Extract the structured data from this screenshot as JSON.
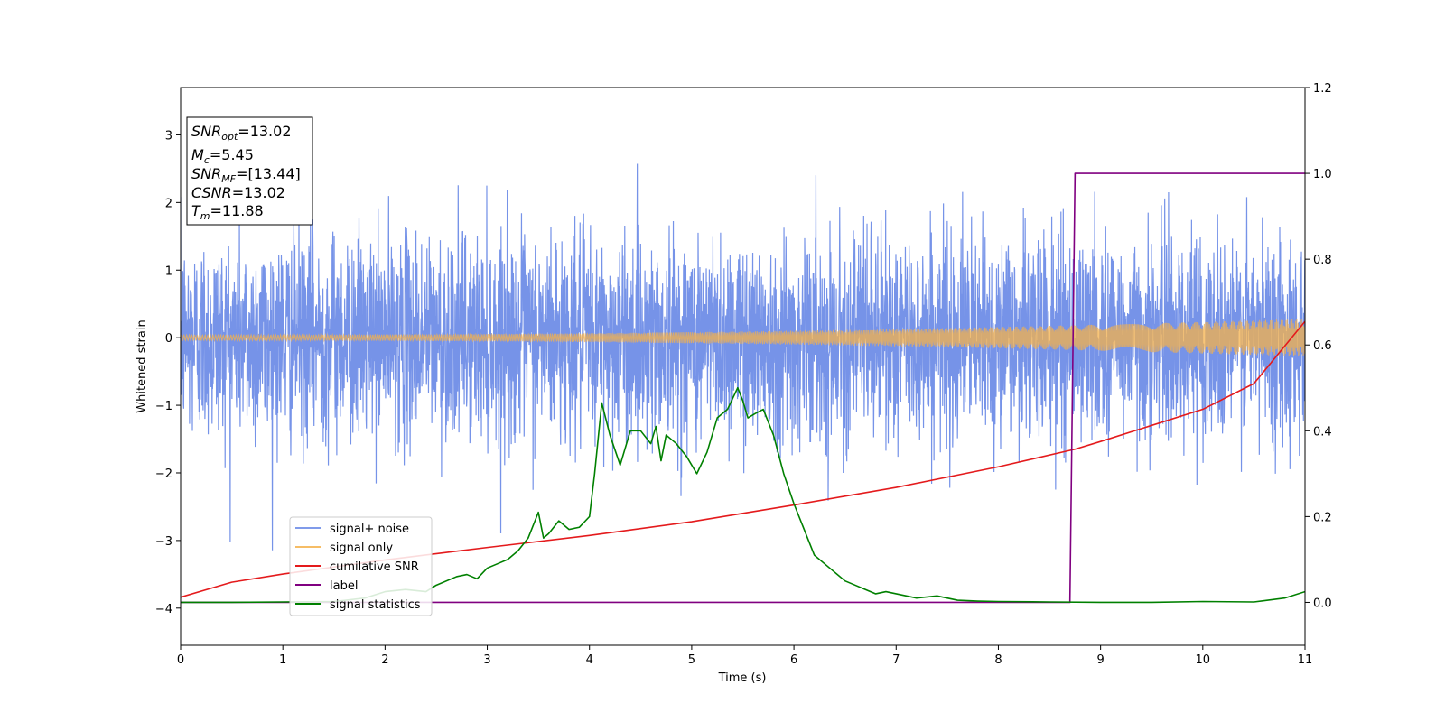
{
  "chart_data": {
    "type": "line",
    "xlabel": "Time (s)",
    "ylabel": "Whitened strain",
    "x_range": [
      0,
      11
    ],
    "y_range_left": [
      -4.55,
      3.7
    ],
    "y_range_right": [
      -0.1,
      1.2
    ],
    "x_ticks": [
      "0",
      "1",
      "2",
      "3",
      "4",
      "5",
      "6",
      "7",
      "8",
      "9",
      "10",
      "11"
    ],
    "x_tick_values": [
      0,
      1,
      2,
      3,
      4,
      5,
      6,
      7,
      8,
      9,
      10,
      11
    ],
    "y_ticks_left": [
      "−4",
      "−3",
      "−2",
      "−1",
      "0",
      "1",
      "2",
      "3"
    ],
    "y_tick_values_left": [
      -4,
      -3,
      -2,
      -1,
      0,
      1,
      2,
      3
    ],
    "y_ticks_right": [
      "0.0",
      "0.2",
      "0.4",
      "0.6",
      "0.8",
      "1.0",
      "1.2"
    ],
    "y_tick_values_right": [
      0.0,
      0.2,
      0.4,
      0.6,
      0.8,
      1.0,
      1.2
    ],
    "grid": false,
    "legend_position": "lower-left",
    "annotation": [
      {
        "base": "SNR",
        "sub": "opt",
        "rest": "=13.02"
      },
      {
        "base": "M",
        "sub": "c",
        "rest": "=5.45"
      },
      {
        "base": "SNR",
        "sub": "MF",
        "rest": "=[13.44]"
      },
      {
        "base": "CSNR",
        "sub": "",
        "rest": "=13.02"
      },
      {
        "base": "T",
        "sub": "m",
        "rest": "=11.88"
      }
    ],
    "series": [
      {
        "name": "signal+ noise",
        "color": "#6a8ae6",
        "axis": "left",
        "kind": "noise",
        "noise_std": 0.75,
        "peak_range": [
          -3.2,
          3.3
        ]
      },
      {
        "name": "signal only",
        "color": "#f5b14b",
        "axis": "left",
        "kind": "chirp",
        "amplitude_start": 0.04,
        "amplitude_end": 0.28
      },
      {
        "name": "cumilative SNR",
        "color": "#e41a1c",
        "axis": "right",
        "x": [
          0,
          0.5,
          1,
          2,
          3,
          4,
          5,
          6,
          7,
          8,
          8.75,
          9,
          10,
          10.5,
          11
        ],
        "y": [
          0.012,
          0.047,
          0.066,
          0.099,
          0.128,
          0.156,
          0.188,
          0.227,
          0.268,
          0.316,
          0.357,
          0.375,
          0.45,
          0.51,
          0.655
        ]
      },
      {
        "name": "label",
        "color": "#800080",
        "axis": "right",
        "x": [
          0,
          8.7,
          8.75,
          11
        ],
        "y": [
          0,
          0,
          1,
          1
        ]
      },
      {
        "name": "signal statistics",
        "color": "#008000",
        "axis": "right",
        "x": [
          0,
          0.5,
          1,
          1.5,
          1.8,
          2.0,
          2.2,
          2.4,
          2.5,
          2.7,
          2.8,
          2.9,
          3.0,
          3.1,
          3.2,
          3.3,
          3.4,
          3.5,
          3.55,
          3.6,
          3.7,
          3.8,
          3.9,
          4.0,
          4.05,
          4.12,
          4.2,
          4.3,
          4.4,
          4.5,
          4.6,
          4.65,
          4.7,
          4.75,
          4.85,
          4.95,
          5.05,
          5.15,
          5.25,
          5.35,
          5.45,
          5.5,
          5.55,
          5.62,
          5.7,
          5.8,
          5.9,
          6.0,
          6.1,
          6.2,
          6.3,
          6.4,
          6.5,
          6.6,
          6.7,
          6.8,
          6.9,
          7.0,
          7.2,
          7.4,
          7.6,
          7.8,
          8.0,
          8.5,
          9.0,
          9.5,
          10.0,
          10.5,
          10.8,
          11.0
        ],
        "y": [
          0.0,
          0.0,
          0.001,
          0.002,
          0.01,
          0.025,
          0.03,
          0.025,
          0.04,
          0.06,
          0.065,
          0.055,
          0.08,
          0.09,
          0.1,
          0.12,
          0.15,
          0.21,
          0.15,
          0.16,
          0.19,
          0.17,
          0.175,
          0.2,
          0.3,
          0.465,
          0.39,
          0.32,
          0.4,
          0.4,
          0.37,
          0.41,
          0.33,
          0.39,
          0.37,
          0.34,
          0.3,
          0.35,
          0.43,
          0.45,
          0.5,
          0.47,
          0.43,
          0.44,
          0.45,
          0.39,
          0.3,
          0.23,
          0.17,
          0.11,
          0.09,
          0.07,
          0.05,
          0.04,
          0.03,
          0.02,
          0.025,
          0.02,
          0.01,
          0.015,
          0.005,
          0.003,
          0.002,
          0.001,
          0.0,
          0.0,
          0.002,
          0.001,
          0.01,
          0.025
        ]
      }
    ]
  }
}
